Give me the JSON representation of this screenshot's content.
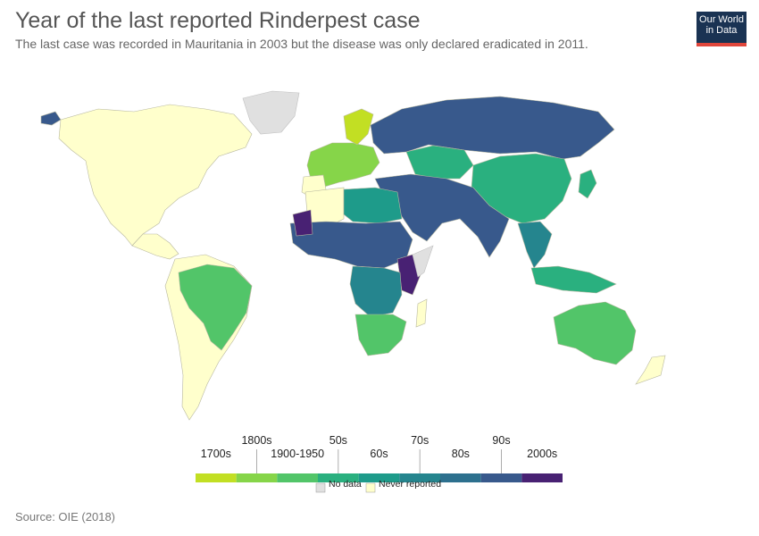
{
  "header": {
    "title": "Year of the last reported Rinderpest case",
    "subtitle": "The last case was recorded in Mauritania in 2003 but the disease was only declared eradicated in 2011."
  },
  "logo": {
    "line1": "Our World",
    "line2": "in Data",
    "bg": "#1a3353",
    "accent": "#e0463b"
  },
  "legend": {
    "bins": [
      {
        "label": "1700s",
        "color": "#c2df23"
      },
      {
        "label": "1800s",
        "color": "#86d549"
      },
      {
        "label": "1900-1950",
        "color": "#52c569"
      },
      {
        "label": "50s",
        "color": "#2ab07f"
      },
      {
        "label": "60s",
        "color": "#1e9b8a"
      },
      {
        "label": "70s",
        "color": "#25858e"
      },
      {
        "label": "80s",
        "color": "#2d708e"
      },
      {
        "label": "90s",
        "color": "#38598c"
      },
      {
        "label": "2000s",
        "color": "#482173"
      }
    ],
    "no_data": {
      "label": "No data",
      "color": "#e0e0e0"
    },
    "never": {
      "label": "Never reported",
      "color": "#ffffcc"
    }
  },
  "source": "Source: OIE (2018)"
}
